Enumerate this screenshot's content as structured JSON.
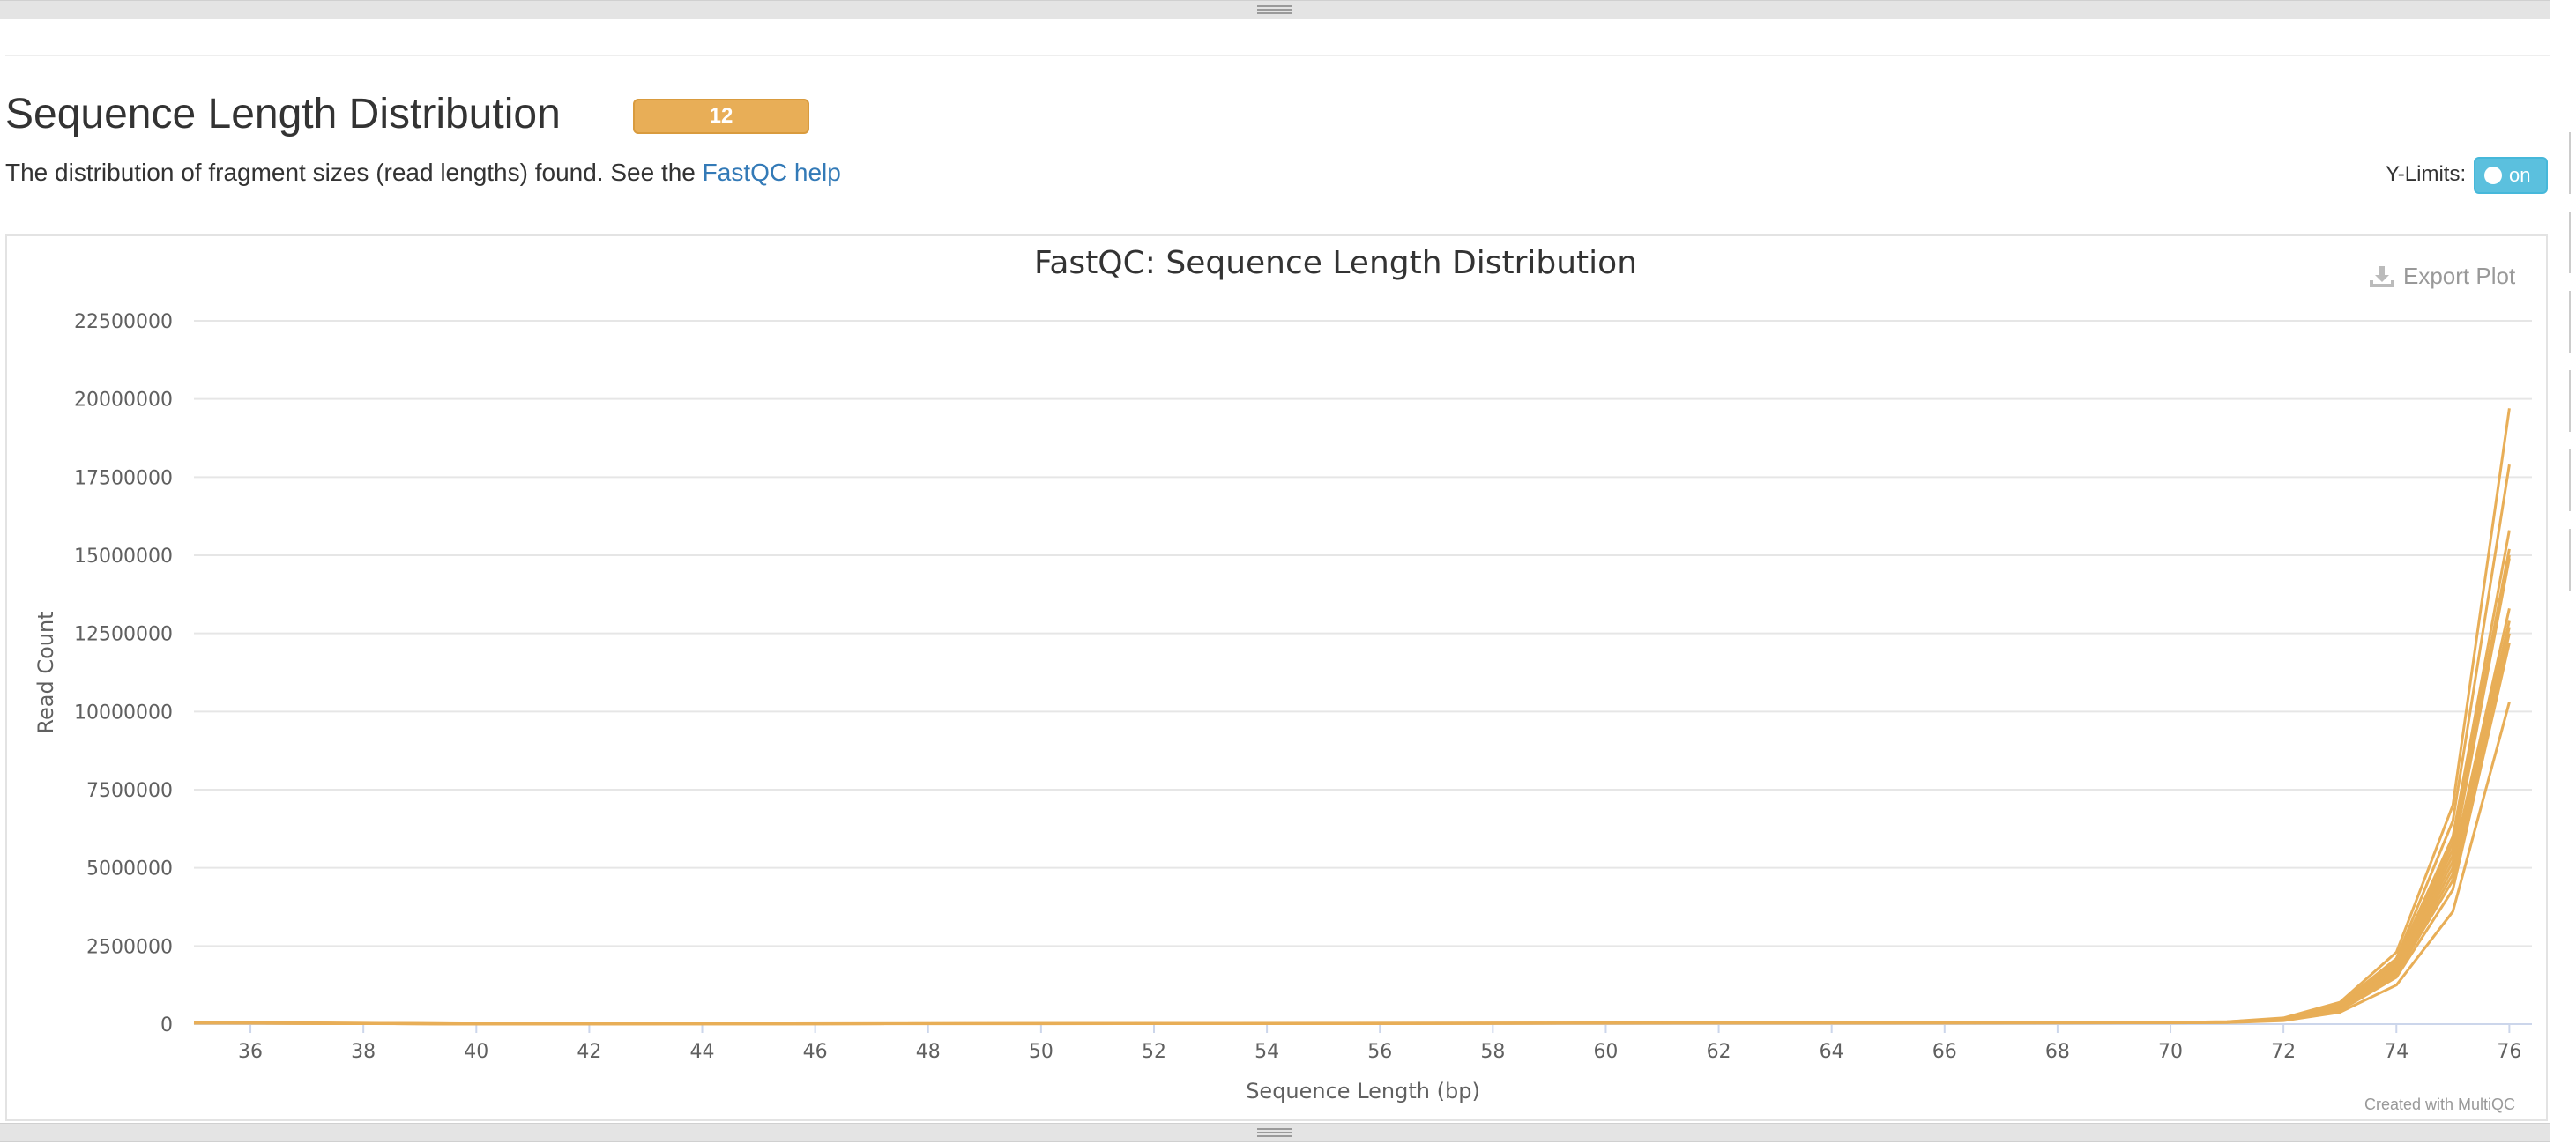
{
  "section": {
    "title": "Sequence Length Distribution",
    "badge": "12",
    "description_text": "The distribution of fragment sizes (read lengths) found. See the ",
    "description_link": "FastQC help"
  },
  "controls": {
    "ylimits_label": "Y-Limits:",
    "ylimits_toggle": "on"
  },
  "plot": {
    "export_label": "Export Plot",
    "credit": "Created with MultiQC"
  },
  "icons": {
    "export": "download-icon",
    "grip": "grip-lines-icon"
  },
  "colors": {
    "series": "#e8ae57",
    "badge": "#e8ae57",
    "toggle": "#5bc0de",
    "link": "#337ab7"
  },
  "chart_data": {
    "type": "line",
    "title": "FastQC: Sequence Length Distribution",
    "xlabel": "Sequence Length (bp)",
    "ylabel": "Read Count",
    "xlim": [
      35,
      76.4
    ],
    "ylim": [
      0,
      22500000
    ],
    "xticks": [
      36,
      38,
      40,
      42,
      44,
      46,
      48,
      50,
      52,
      54,
      56,
      58,
      60,
      62,
      64,
      66,
      68,
      70,
      72,
      74,
      76
    ],
    "yticks": [
      0,
      2500000,
      5000000,
      7500000,
      10000000,
      12500000,
      15000000,
      17500000,
      20000000,
      22500000
    ],
    "ytick_labels": [
      "0",
      "2500000",
      "5000000",
      "7500000",
      "10000000",
      "12500000",
      "15000000",
      "17500000",
      "20000000",
      "22500000"
    ],
    "grid": true,
    "legend": false,
    "x": [
      35,
      40,
      45,
      50,
      55,
      60,
      65,
      70,
      71,
      72,
      73,
      74,
      75,
      76
    ],
    "series": [
      {
        "values": [
          60000,
          10000,
          15000,
          20000,
          30000,
          40000,
          50000,
          60000,
          80000,
          200000,
          700000,
          2300000,
          7000000,
          19700000
        ]
      },
      {
        "values": [
          55000,
          10000,
          15000,
          20000,
          28000,
          38000,
          48000,
          58000,
          75000,
          180000,
          650000,
          2100000,
          6500000,
          17900000
        ]
      },
      {
        "values": [
          50000,
          9000,
          14000,
          18000,
          26000,
          35000,
          45000,
          55000,
          70000,
          170000,
          600000,
          2000000,
          6000000,
          15800000
        ]
      },
      {
        "values": [
          48000,
          9000,
          13000,
          18000,
          25000,
          34000,
          44000,
          54000,
          68000,
          160000,
          580000,
          1900000,
          5800000,
          15200000
        ]
      },
      {
        "values": [
          46000,
          8000,
          13000,
          17000,
          24000,
          33000,
          42000,
          52000,
          66000,
          155000,
          560000,
          1850000,
          5600000,
          15000000
        ]
      },
      {
        "values": [
          44000,
          8000,
          12000,
          16000,
          23000,
          32000,
          41000,
          50000,
          64000,
          150000,
          540000,
          1800000,
          5400000,
          14900000
        ]
      },
      {
        "values": [
          42000,
          8000,
          12000,
          16000,
          22000,
          31000,
          40000,
          49000,
          62000,
          145000,
          520000,
          1750000,
          5200000,
          13300000
        ]
      },
      {
        "values": [
          40000,
          7000,
          11000,
          15000,
          21000,
          30000,
          39000,
          48000,
          60000,
          140000,
          500000,
          1700000,
          5000000,
          12900000
        ]
      },
      {
        "values": [
          38000,
          7000,
          11000,
          15000,
          20000,
          29000,
          38000,
          47000,
          58000,
          135000,
          480000,
          1650000,
          4800000,
          12700000
        ]
      },
      {
        "values": [
          36000,
          7000,
          10000,
          14000,
          20000,
          28000,
          37000,
          46000,
          56000,
          130000,
          460000,
          1600000,
          4600000,
          12500000
        ]
      },
      {
        "values": [
          34000,
          6000,
          10000,
          14000,
          19000,
          27000,
          36000,
          45000,
          54000,
          125000,
          440000,
          1500000,
          4300000,
          12200000
        ]
      },
      {
        "values": [
          30000,
          5000,
          9000,
          12000,
          17000,
          24000,
          32000,
          40000,
          48000,
          110000,
          380000,
          1250000,
          3600000,
          10300000
        ]
      }
    ]
  }
}
